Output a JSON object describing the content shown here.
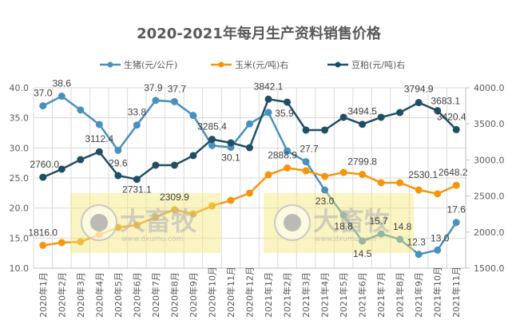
{
  "chart_data": {
    "type": "line",
    "title": "2020-2021年每月生产资料销售价格",
    "categories": [
      "2020年1月",
      "2020年2月",
      "2020年3月",
      "2020年4月",
      "2020年5月",
      "2020年6月",
      "2020年7月",
      "2020年8月",
      "2020年9月",
      "2020年10月",
      "2020年11月",
      "2020年12月",
      "2021年1月",
      "2021年2月",
      "2021年3月",
      "2021年4月",
      "2021年5月",
      "2021年6月",
      "2021年7月",
      "2021年8月",
      "2021年9月",
      "2021年10月",
      "2021年11月"
    ],
    "left_axis": {
      "ylim": [
        10,
        40
      ],
      "ticks": [
        "10.0",
        "15.0",
        "20.0",
        "25.0",
        "30.0",
        "35.0",
        "40.0"
      ]
    },
    "right_axis": {
      "ylim": [
        1500,
        4000
      ],
      "ticks": [
        "1500.0",
        "2000.0",
        "2500.0",
        "3000.0",
        "3500.0",
        "4000.0"
      ]
    },
    "grid": true,
    "legend_placement": "top",
    "series": [
      {
        "name": "生猪(元/公斤)",
        "axis": "left",
        "color": "#4a90bd",
        "values": [
          37.0,
          38.6,
          36.3,
          33.9,
          29.6,
          33.8,
          37.9,
          37.7,
          35.4,
          30.4,
          30.1,
          34.0,
          35.9,
          29.5,
          27.7,
          23.0,
          18.8,
          14.5,
          15.7,
          14.8,
          12.3,
          13.0,
          17.6
        ],
        "labels": {
          "0": "37.0",
          "1": "38.6",
          "4": "29.6",
          "5": "33.8",
          "6": "37.9",
          "7": "37.7",
          "10": "30.1",
          "12": "35.9",
          "14": "27.7",
          "15": "23.0",
          "16": "18.8",
          "17": "14.5",
          "18": "15.7",
          "19": "14.8",
          "20": "12.3",
          "21": "13.0",
          "22": "17.6"
        }
      },
      {
        "name": "玉米(元/吨)右",
        "axis": "right",
        "color": "#f5960a",
        "values": [
          1816.0,
          1854,
          1865,
          1965,
          2064,
          2097,
          2208,
          2309.9,
          2252,
          2363,
          2440,
          2540,
          2794,
          2888.9,
          2850,
          2772,
          2827,
          2799.8,
          2684,
          2684,
          2584,
          2530.1,
          2648.2
        ],
        "labels": {
          "0": "1816.0",
          "7": "2309.9",
          "13": "2888.9",
          "17": "2799.8",
          "21": "2530.1",
          "22": "2648.2"
        }
      },
      {
        "name": "豆粕(元/吨)右",
        "axis": "right",
        "color": "#1f4e65",
        "values": [
          2760.0,
          2872,
          3004,
          3112.4,
          2783,
          2731.1,
          2927,
          2927,
          3060,
          3285.4,
          3237,
          3170,
          3842.1,
          3801,
          3414,
          3414,
          3591,
          3494.5,
          3591,
          3657,
          3794.9,
          3683.1,
          3420.4
        ],
        "labels": {
          "0": "2760.0",
          "3": "3112.4",
          "5": "2731.1",
          "9": "3285.4",
          "12": "3842.1",
          "17": "3494.5",
          "20": "3794.9",
          "21": "3683.1",
          "22": "3420.4"
        }
      }
    ]
  },
  "watermark": {
    "brand": "大畜牧",
    "url": "www.dxumu.com"
  }
}
